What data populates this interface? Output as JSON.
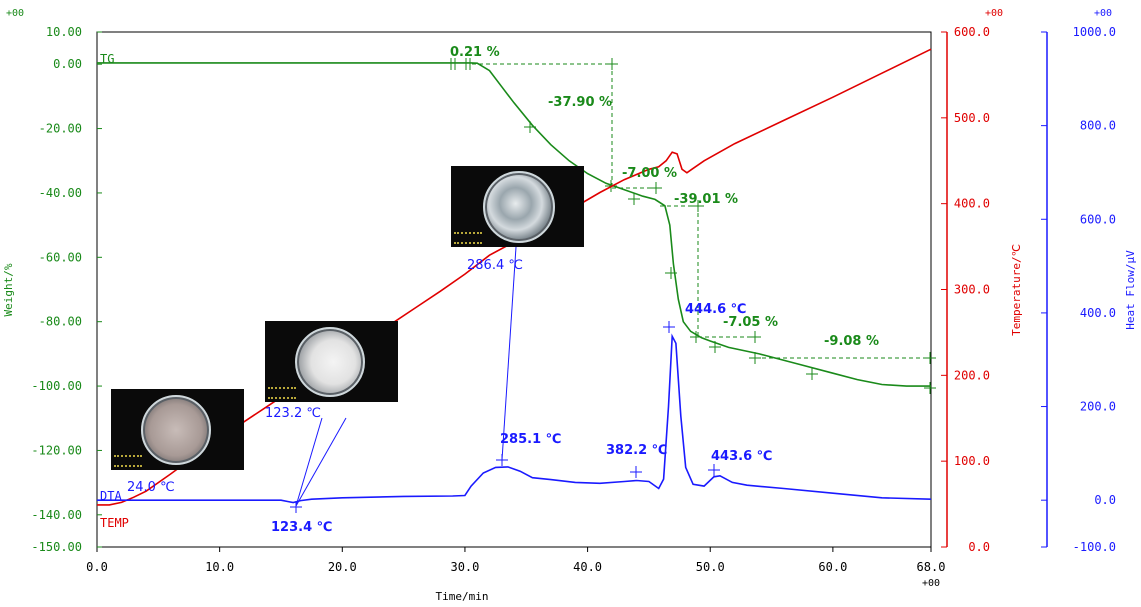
{
  "colors": {
    "tg": "#1a8a1a",
    "temp": "#e00000",
    "dta": "#1a1aff",
    "photo_bg": "#0a0a0a"
  },
  "chart_data": {
    "type": "line",
    "xlabel": "Time/min",
    "xlim": [
      0,
      68
    ],
    "x_ticks": [
      "0.0",
      "10.0",
      "20.0",
      "30.0",
      "40.0",
      "50.0",
      "60.0",
      "68.0"
    ],
    "x_exponent": "+00",
    "axes": {
      "weight": {
        "label": "Weight/%",
        "ylim": [
          -150,
          10
        ],
        "exponent": "+00",
        "ticks": [
          "10.00",
          "0.00",
          "-20.00",
          "-40.00",
          "-60.00",
          "-80.00",
          "-100.00",
          "-120.00",
          "-140.00",
          "-150.00"
        ]
      },
      "temperature": {
        "label": "Temperature/℃",
        "ylim": [
          0,
          600
        ],
        "exponent": "+00",
        "ticks": [
          "600.0",
          "500.0",
          "400.0",
          "300.0",
          "200.0",
          "100.0",
          "0.0"
        ]
      },
      "heatflow": {
        "label": "Heat Flow/μV",
        "ylim": [
          -100,
          1000
        ],
        "exponent": "+00",
        "ticks": [
          "1000.0",
          "800.0",
          "600.0",
          "400.0",
          "200.0",
          "0.0",
          "-100.0"
        ]
      }
    },
    "series": [
      {
        "name": "TG",
        "axis": "weight",
        "points": [
          [
            0,
            0.4
          ],
          [
            29,
            0.4
          ],
          [
            30.5,
            0.4
          ],
          [
            31,
            0.3
          ],
          [
            32,
            -2
          ],
          [
            33,
            -7
          ],
          [
            34,
            -12
          ],
          [
            35.5,
            -19
          ],
          [
            37,
            -25
          ],
          [
            38.5,
            -30
          ],
          [
            40,
            -34
          ],
          [
            41.5,
            -37
          ],
          [
            43,
            -39
          ],
          [
            44.5,
            -41
          ],
          [
            45.5,
            -42
          ],
          [
            46.3,
            -44
          ],
          [
            46.7,
            -50
          ],
          [
            47,
            -62
          ],
          [
            47.4,
            -73
          ],
          [
            47.8,
            -80
          ],
          [
            48.4,
            -83
          ],
          [
            49.3,
            -85
          ],
          [
            50,
            -86
          ],
          [
            51.5,
            -88
          ],
          [
            54,
            -90
          ],
          [
            57,
            -93
          ],
          [
            60,
            -96
          ],
          [
            62,
            -98
          ],
          [
            64,
            -99.5
          ],
          [
            66,
            -100
          ],
          [
            68,
            -100
          ]
        ]
      },
      {
        "name": "TEMP",
        "axis": "temperature",
        "points": [
          [
            0,
            49
          ],
          [
            1,
            49
          ],
          [
            2,
            52
          ],
          [
            3,
            58
          ],
          [
            4,
            65
          ],
          [
            6,
            85
          ],
          [
            8,
            106
          ],
          [
            10,
            126
          ],
          [
            12,
            146
          ],
          [
            14,
            165
          ],
          [
            16,
            184
          ],
          [
            18,
            203
          ],
          [
            20,
            222
          ],
          [
            22,
            241
          ],
          [
            24,
            260
          ],
          [
            26,
            279
          ],
          [
            28,
            298
          ],
          [
            30,
            318
          ],
          [
            32,
            340
          ],
          [
            35,
            363
          ],
          [
            38,
            388
          ],
          [
            41,
            413
          ],
          [
            43,
            428
          ],
          [
            45,
            440
          ],
          [
            45.8,
            443
          ],
          [
            46.4,
            450
          ],
          [
            46.9,
            460
          ],
          [
            47.3,
            458
          ],
          [
            47.7,
            440
          ],
          [
            48.1,
            436
          ],
          [
            48.5,
            440
          ],
          [
            49.5,
            450
          ],
          [
            52,
            470
          ],
          [
            56,
            497
          ],
          [
            60,
            524
          ],
          [
            64,
            552
          ],
          [
            68,
            580
          ]
        ]
      },
      {
        "name": "DTA",
        "axis": "heatflow",
        "points": [
          [
            0,
            0
          ],
          [
            15,
            0
          ],
          [
            15.6,
            -3
          ],
          [
            16,
            -5
          ],
          [
            16.6,
            -1
          ],
          [
            17.5,
            2
          ],
          [
            20,
            5
          ],
          [
            25,
            8
          ],
          [
            29,
            9
          ],
          [
            30,
            10
          ],
          [
            30.5,
            30
          ],
          [
            31.5,
            58
          ],
          [
            32.5,
            70
          ],
          [
            33.5,
            71
          ],
          [
            34.5,
            62
          ],
          [
            35.5,
            48
          ],
          [
            37,
            44
          ],
          [
            39,
            38
          ],
          [
            41,
            36
          ],
          [
            43,
            40
          ],
          [
            44,
            42
          ],
          [
            45,
            40
          ],
          [
            45.8,
            25
          ],
          [
            46.2,
            45
          ],
          [
            46.6,
            200
          ],
          [
            46.9,
            350
          ],
          [
            47.2,
            335
          ],
          [
            47.6,
            180
          ],
          [
            48,
            70
          ],
          [
            48.6,
            34
          ],
          [
            49.5,
            30
          ],
          [
            50.3,
            50
          ],
          [
            50.8,
            52
          ],
          [
            51.8,
            38
          ],
          [
            53,
            32
          ],
          [
            56,
            25
          ],
          [
            60,
            15
          ],
          [
            64,
            5
          ],
          [
            68,
            2
          ]
        ]
      }
    ],
    "annotations": [
      {
        "text": "0.21 %",
        "color": "tg"
      },
      {
        "text": "-37.90 %",
        "color": "tg"
      },
      {
        "text": "-7.00 %",
        "color": "tg"
      },
      {
        "text": "-39.01 %",
        "color": "tg"
      },
      {
        "text": "-7.05 %",
        "color": "tg"
      },
      {
        "text": "-9.08 %",
        "color": "tg"
      },
      {
        "text": "444.6 ℃",
        "color": "dta"
      },
      {
        "text": "286.4 ℃",
        "color": "dta"
      },
      {
        "text": "123.2 ℃",
        "color": "dta"
      },
      {
        "text": "24.0 ℃",
        "color": "dta"
      },
      {
        "text": "285.1 ℃",
        "color": "dta"
      },
      {
        "text": "382.2 ℃",
        "color": "dta"
      },
      {
        "text": "443.6 ℃",
        "color": "dta"
      },
      {
        "text": "123.4 ℃",
        "color": "dta"
      }
    ]
  }
}
